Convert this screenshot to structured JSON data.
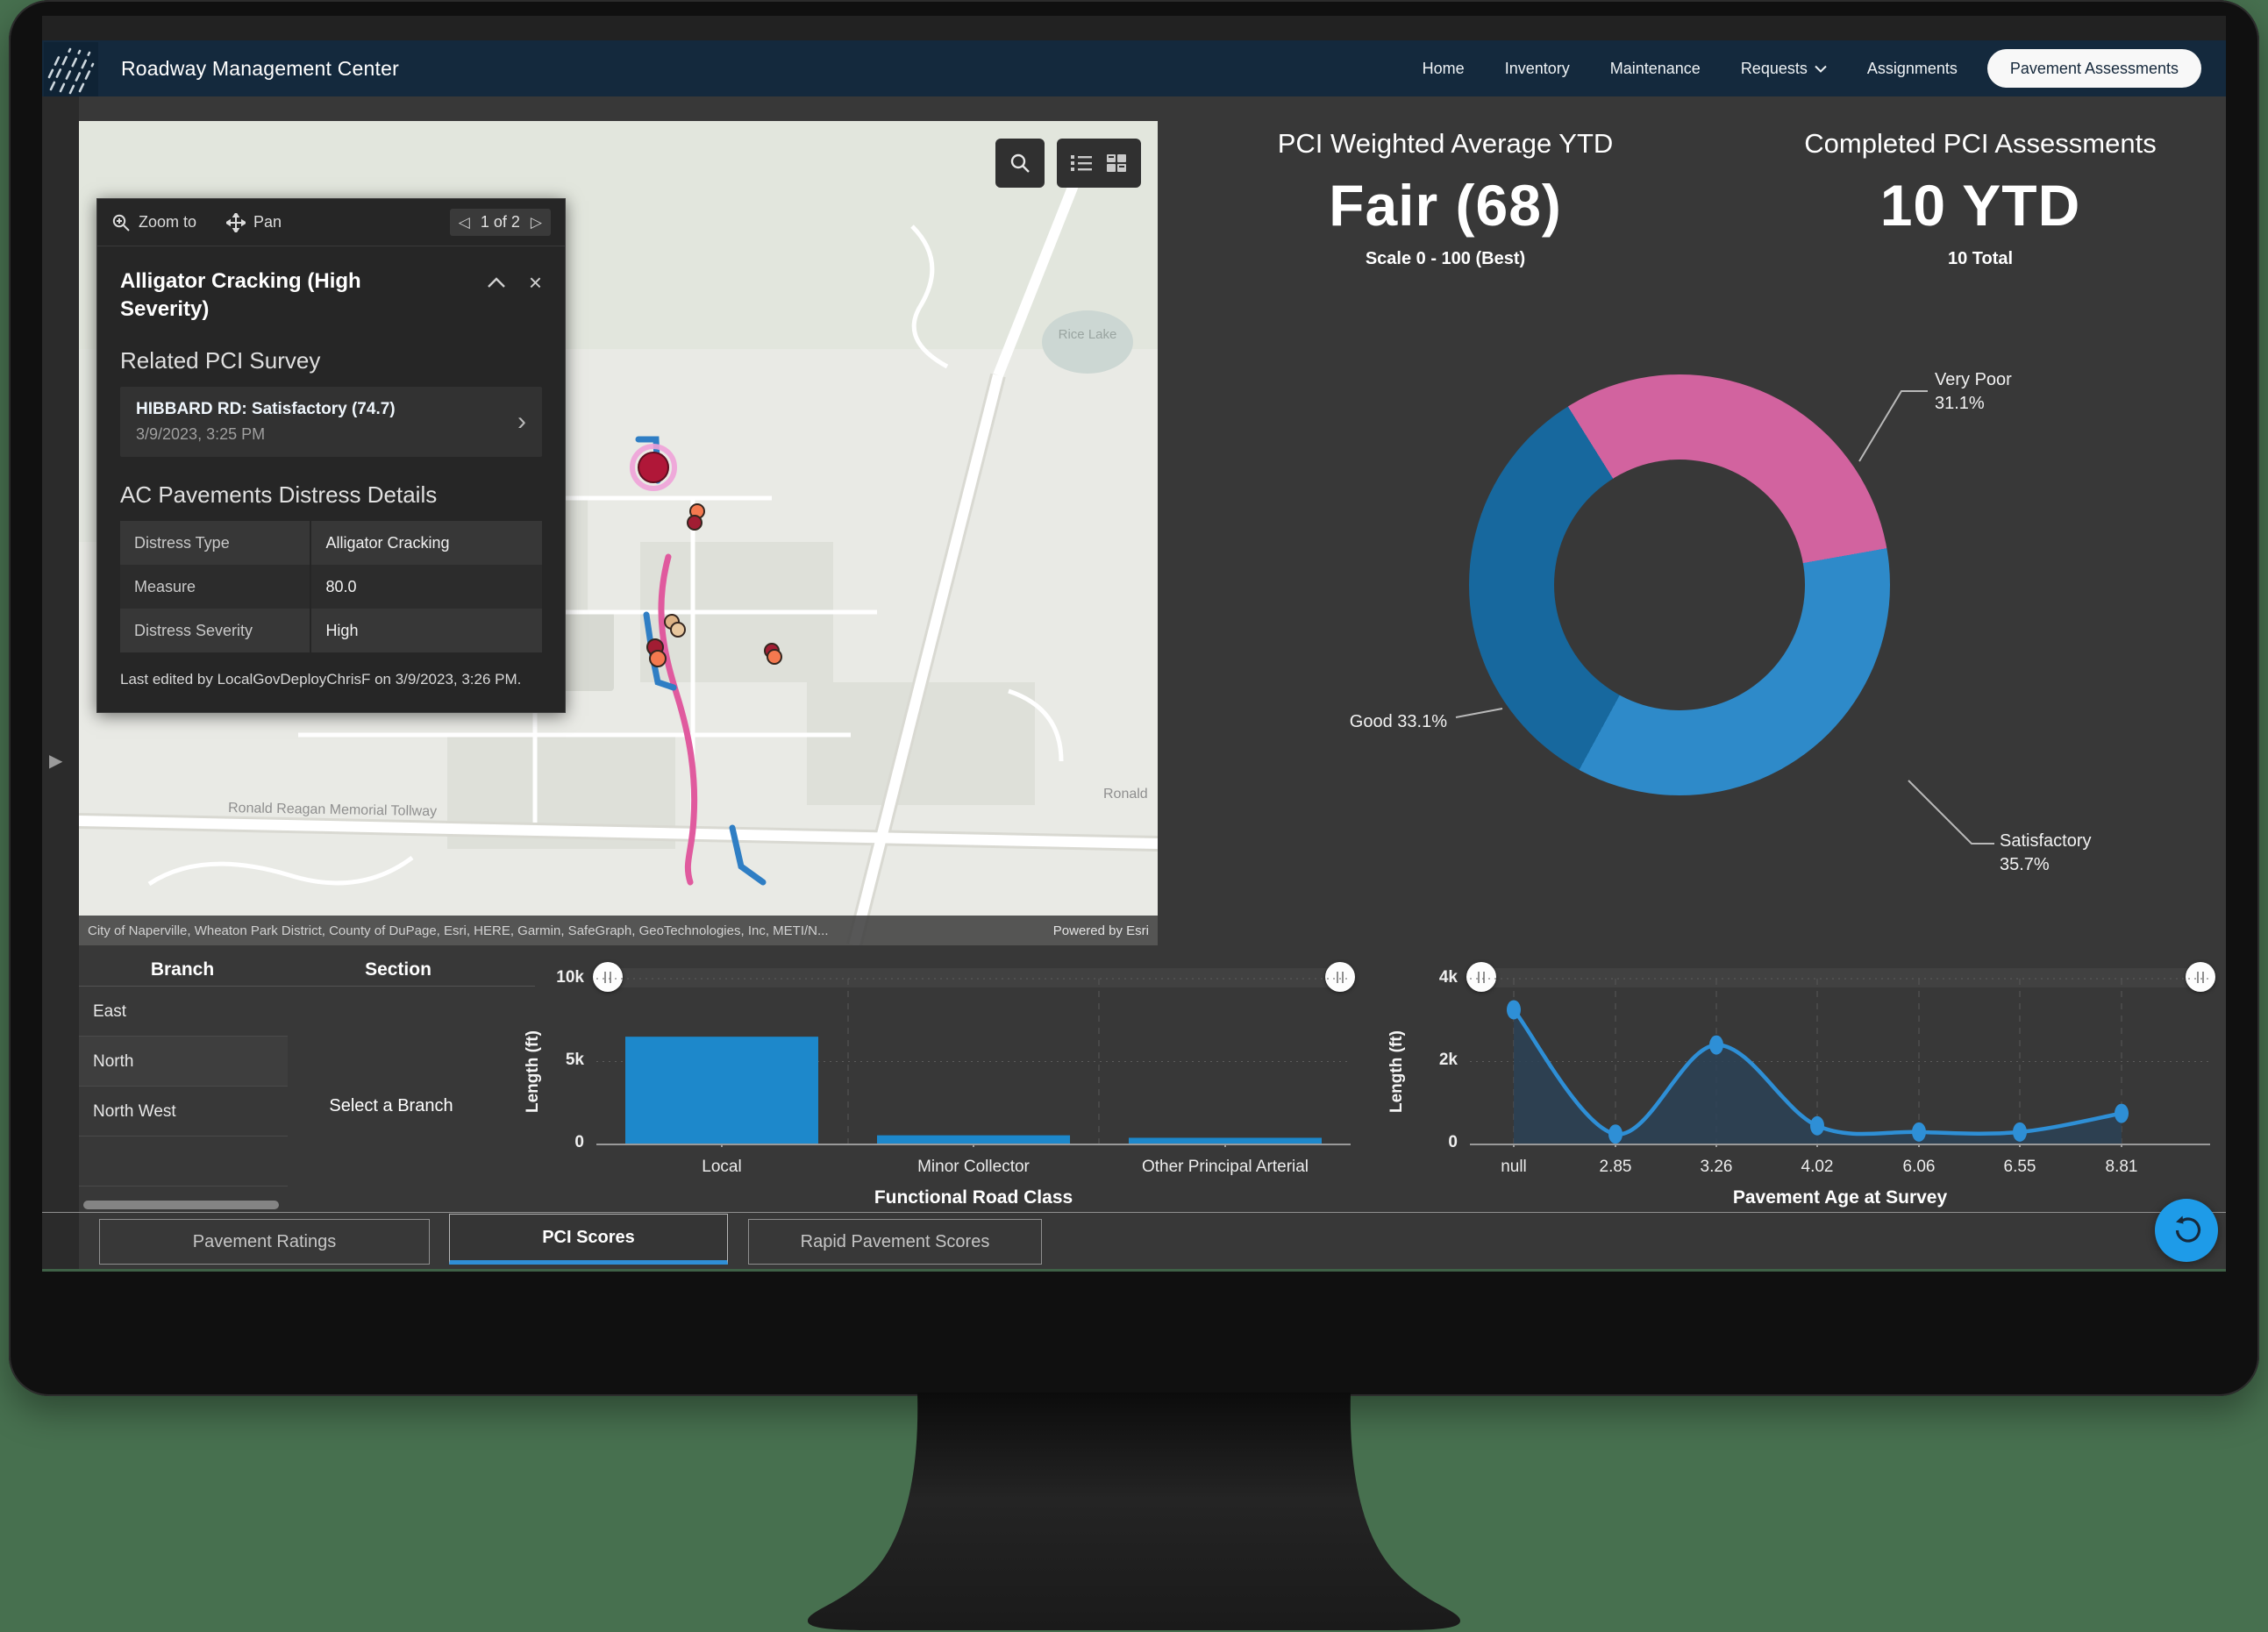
{
  "nav": {
    "title": "Roadway Management Center",
    "items": [
      "Home",
      "Inventory",
      "Maintenance",
      "Requests",
      "Assignments"
    ],
    "active_pill": "Pavement Assessments"
  },
  "map": {
    "popup": {
      "zoom_to": "Zoom to",
      "pan": "Pan",
      "pager": "1 of 2",
      "title": "Alligator Cracking (High Severity)",
      "related_heading": "Related PCI Survey",
      "related_link": "HIBBARD RD: Satisfactory (74.7)",
      "related_date": "3/9/2023, 3:25 PM",
      "details_heading": "AC Pavements Distress Details",
      "rows": [
        {
          "label": "Distress Type",
          "value": "Alligator Cracking"
        },
        {
          "label": "Measure",
          "value": "80.0"
        },
        {
          "label": "Distress Severity",
          "value": "High"
        }
      ],
      "footer": "Last edited by LocalGovDeployChrisF on 3/9/2023, 3:26 PM."
    },
    "labels": {
      "lake": "Rice Lake",
      "tollway": "Ronald Reagan Memorial Tollway",
      "tollway_right": "Ronald"
    },
    "attribution": {
      "sources": "City of Naperville, Wheaton Park District, County of DuPage, Esri, HERE, Garmin, SafeGraph, GeoTechnologies, Inc, METI/N...",
      "powered": "Powered by Esri"
    }
  },
  "stats": [
    {
      "title": "PCI Weighted Average YTD",
      "value": "Fair (68)",
      "caption": "Scale 0 - 100 (Best)"
    },
    {
      "title": "Completed PCI Assessments",
      "value": "10 YTD",
      "caption": "10 Total"
    }
  ],
  "branch_table": {
    "headers": [
      "Branch",
      "Section"
    ],
    "rows": [
      "East",
      "North",
      "North West"
    ],
    "selected": "North",
    "section_placeholder": "Select a Branch"
  },
  "tabs": [
    {
      "label": "Pavement Ratings",
      "active": false
    },
    {
      "label": "PCI Scores",
      "active": true
    },
    {
      "label": "Rapid Pavement Scores",
      "active": false
    }
  ],
  "icons": {
    "close": "×",
    "pager_prev": "◁",
    "pager_next": "▷",
    "chevron_right": "›",
    "rail_expand": "▶"
  },
  "colors": {
    "accent_blue": "#1e9be8",
    "nav_navy": "#14293d",
    "tab_underline": "#2f8fd6"
  },
  "chart_data": [
    {
      "type": "pie",
      "subtype": "donut",
      "title": "Completed PCI Assessments by rating",
      "start_angle_deg": -32,
      "slices": [
        {
          "label": "Very Poor",
          "pct": 31.1,
          "pct_text": "31.1%",
          "color": "#d2639f"
        },
        {
          "label": "Satisfactory",
          "pct": 35.7,
          "pct_text": "35.7%",
          "color": "#2e8ac9"
        },
        {
          "label": "Good",
          "pct": 33.1,
          "pct_text": "33.1%",
          "color": "#17689e"
        }
      ],
      "legend_position": "callouts"
    },
    {
      "type": "bar",
      "categories": [
        "Local",
        "Minor Collector",
        "Other Principal Arterial"
      ],
      "values": [
        6500,
        550,
        400
      ],
      "xlabel": "Functional Road Class",
      "ylabel": "Length (ft)",
      "yticks": [
        "0",
        "5k",
        "10k"
      ],
      "ylim": [
        0,
        10000
      ],
      "bar_color": "#1d88cb",
      "grid": true
    },
    {
      "type": "area",
      "categories": [
        "null",
        "2.85",
        "3.26",
        "4.02",
        "6.06",
        "6.55",
        "8.81"
      ],
      "values": [
        3250,
        250,
        2400,
        450,
        300,
        300,
        750
      ],
      "xlabel": "Pavement Age at Survey",
      "ylabel": "Length (ft)",
      "yticks": [
        "0",
        "2k",
        "4k"
      ],
      "ylim": [
        0,
        4000
      ],
      "line_color": "#2e8fd6",
      "fill_color": "#2b4256",
      "grid": true
    }
  ]
}
